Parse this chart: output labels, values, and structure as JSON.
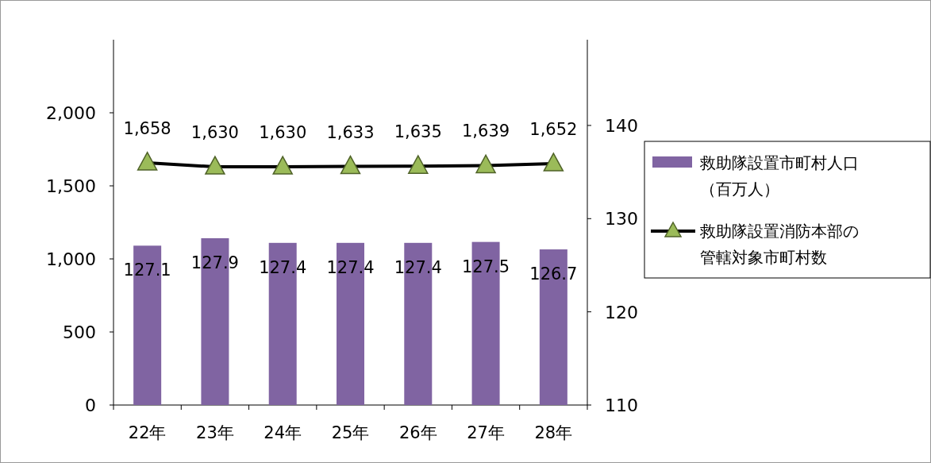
{
  "chart_data": {
    "type": "bar",
    "categories": [
      "22年",
      "23年",
      "24年",
      "25年",
      "26年",
      "27年",
      "28年"
    ],
    "series": [
      {
        "name": "救助隊設置市町村人口（百万人）",
        "axis": "y2",
        "color": "#8064a2",
        "values": [
          127.1,
          127.9,
          127.4,
          127.4,
          127.4,
          127.5,
          126.7
        ]
      },
      {
        "name": "救助隊設置消防本部の管轄対象市町村数",
        "type": "line",
        "axis": "y",
        "color": "#000000",
        "marker": "triangle",
        "values": [
          1658,
          1630,
          1630,
          1633,
          1635,
          1639,
          1652
        ],
        "value_labels": [
          "1,658",
          "1,630",
          "1,630",
          "1,633",
          "1,635",
          "1,639",
          "1,652"
        ]
      }
    ],
    "ylim": [
      0,
      2500
    ],
    "yticks": [
      0,
      500,
      {
        "value": 1000,
        "label": "1,000"
      },
      {
        "value": 1500,
        "label": "1,500"
      },
      {
        "value": 2000,
        "label": "2,000"
      }
    ],
    "y2lim": [
      110,
      149.2
    ],
    "y2ticks": [
      110,
      120,
      130,
      140
    ],
    "data_labels": true,
    "legend": "right",
    "grid": false
  }
}
